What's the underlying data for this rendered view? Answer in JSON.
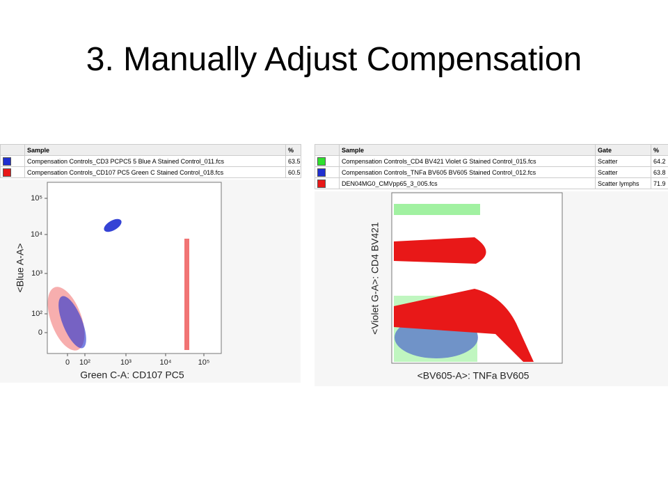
{
  "title": "3. Manually Adjust Compensation",
  "left_panel": {
    "table": {
      "columns": [
        "Sample",
        "%"
      ],
      "rows": [
        [
          "Compensation Controls_CD3 PCPC5 5 Blue A Stained Control_011.fcs",
          "63.5"
        ],
        [
          "Compensation Controls_CD107 PC5 Green C Stained Control_018.fcs",
          "60.5"
        ]
      ]
    },
    "y_label": "<Blue A-A>",
    "x_label": "Green C-A: CD107 PC5",
    "y_ticks": [
      "10⁵",
      "10⁴",
      "10³",
      "10²",
      "0"
    ],
    "x_ticks": [
      "0",
      "10²",
      "10³",
      "10⁴",
      "10⁵"
    ]
  },
  "right_panel": {
    "table": {
      "columns": [
        "Sample",
        "Gate",
        "%"
      ],
      "rows": [
        [
          "Compensation Controls_CD4 BV421 Violet G Stained Control_015.fcs",
          "Scatter",
          "64.2"
        ],
        [
          "Compensation Controls_TNFa BV605 BV605 Stained Control_012.fcs",
          "Scatter",
          "63.8"
        ],
        [
          "DEN04MG0_CMVpp65_3_005.fcs",
          "Scatter lymphs",
          "71.9"
        ]
      ]
    },
    "y_label": "<Violet G-A>: CD4 BV421",
    "x_label": "<BV605-A>: TNFa BV605"
  }
}
